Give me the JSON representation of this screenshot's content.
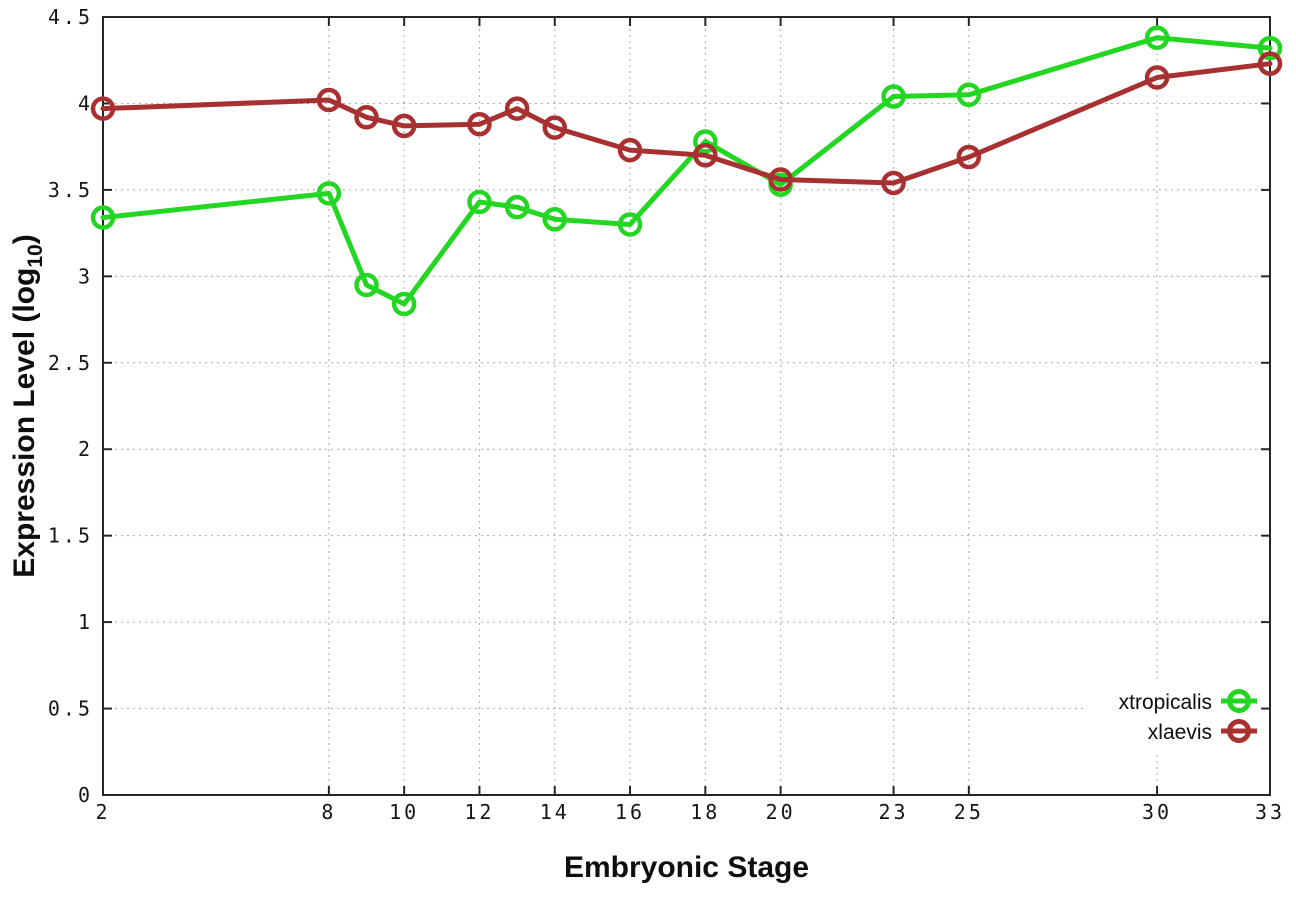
{
  "chart_data": {
    "type": "line",
    "title": "",
    "xlabel": "Embryonic Stage",
    "ylabel": "Expression Level (log10)",
    "ylabel_parts": [
      "Expression Level (log",
      "10",
      ")"
    ],
    "x": [
      2,
      8,
      9,
      10,
      12,
      13,
      14,
      16,
      18,
      20,
      23,
      25,
      30,
      33
    ],
    "series": [
      {
        "name": "xtropicalis",
        "color": "#22d622",
        "values": [
          3.34,
          3.48,
          2.95,
          2.84,
          3.43,
          3.4,
          3.33,
          3.3,
          3.78,
          3.53,
          4.04,
          4.05,
          4.38,
          4.32
        ]
      },
      {
        "name": "xlaevis",
        "color": "#a93030",
        "values": [
          3.97,
          4.02,
          3.92,
          3.87,
          3.88,
          3.97,
          3.86,
          3.73,
          3.7,
          3.56,
          3.54,
          3.69,
          4.15,
          4.23
        ]
      }
    ],
    "xlim": [
      2,
      33
    ],
    "ylim": [
      0,
      4.5
    ],
    "xtick_values": [
      2,
      8,
      10,
      12,
      14,
      16,
      18,
      20,
      23,
      25,
      30,
      33
    ],
    "xtick_labels": [
      "2",
      "8",
      "10",
      "12",
      "14",
      "16",
      "18",
      "20",
      "23",
      "25",
      "30",
      "33"
    ],
    "ytick_values": [
      0,
      0.5,
      1,
      1.5,
      2,
      2.5,
      3,
      3.5,
      4,
      4.5
    ],
    "ytick_labels": [
      "0",
      "0.5",
      "1",
      "1.5",
      "2",
      "2.5",
      "3",
      "3.5",
      "4",
      "4.5"
    ],
    "grid": true,
    "legend_position": "inside-bottom-right",
    "marker": "open-circle"
  },
  "colors": {
    "background": "#ffffff",
    "border": "#262626",
    "grid": "#ababab",
    "text": "#161616",
    "xtropicalis": "#22d622",
    "xlaevis": "#a93030"
  }
}
